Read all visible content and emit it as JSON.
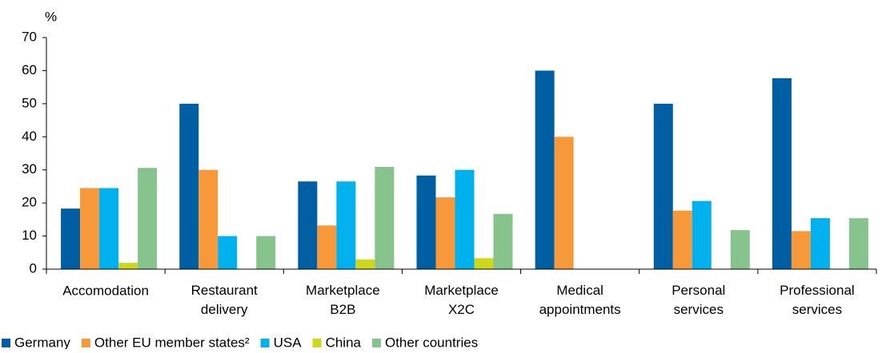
{
  "chart_data": {
    "type": "bar",
    "y_label": "%",
    "categories": [
      "Accomodation",
      "Restaurant delivery",
      "Marketplace B2B",
      "Marketplace X2C",
      "Medical appointments",
      "Personal services",
      "Professional services"
    ],
    "series": [
      {
        "name": "Germany",
        "color": "#005ea2",
        "values": [
          18.3,
          50,
          26.5,
          28.3,
          60,
          50,
          57.7
        ]
      },
      {
        "name": "Other EU member states²",
        "color": "#f7993b",
        "values": [
          24.5,
          30,
          13.2,
          21.7,
          40,
          17.7,
          11.5
        ]
      },
      {
        "name": "USA",
        "color": "#00b1ee",
        "values": [
          24.5,
          10,
          26.5,
          30,
          null,
          20.6,
          15.4
        ]
      },
      {
        "name": "China",
        "color": "#cdd71c",
        "values": [
          1.9,
          null,
          2.9,
          3.3,
          null,
          null,
          null
        ]
      },
      {
        "name": "Other countries",
        "color": "#87c38d",
        "values": [
          30.6,
          10,
          30.9,
          16.7,
          null,
          11.8,
          15.4
        ]
      }
    ],
    "ylim": [
      0,
      70
    ],
    "yticks": [
      0,
      10,
      20,
      30,
      40,
      50,
      60,
      70
    ],
    "grid": false,
    "legend": "bottom"
  }
}
